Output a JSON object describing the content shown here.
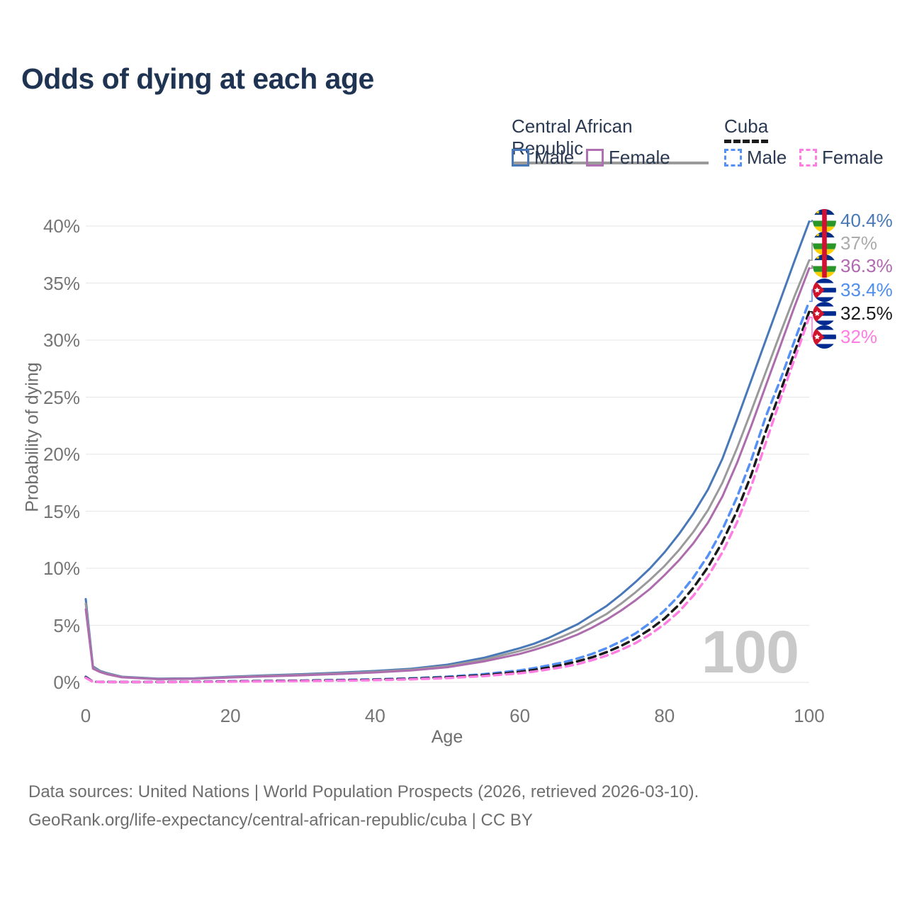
{
  "title": "Odds of dying at each age",
  "watermark_age": "100",
  "legend": {
    "groups": [
      {
        "label": "Central African Republic",
        "line_style": "solid",
        "underline_color": "#9a9a9a",
        "items": [
          {
            "label": "Male",
            "color": "#4878b8"
          },
          {
            "label": "Female",
            "color": "#b06fb0"
          }
        ]
      },
      {
        "label": "Cuba",
        "line_style": "dashed",
        "underline_color": "#1a1a1a",
        "items": [
          {
            "label": "Male",
            "color": "#5590f5"
          },
          {
            "label": "Female",
            "color": "#ff7de2"
          }
        ]
      }
    ]
  },
  "axes": {
    "x_label": "Age",
    "y_label": "Probability of dying",
    "x_ticks": [
      {
        "label": "0",
        "value": 0
      },
      {
        "label": "20",
        "value": 20
      },
      {
        "label": "40",
        "value": 40
      },
      {
        "label": "60",
        "value": 60
      },
      {
        "label": "80",
        "value": 80
      },
      {
        "label": "100",
        "value": 100
      }
    ],
    "y_ticks": [
      {
        "label": "0%",
        "value": 0
      },
      {
        "label": "5%",
        "value": 5
      },
      {
        "label": "10%",
        "value": 10
      },
      {
        "label": "15%",
        "value": 15
      },
      {
        "label": "20%",
        "value": 20
      },
      {
        "label": "25%",
        "value": 25
      },
      {
        "label": "30%",
        "value": 30
      },
      {
        "label": "35%",
        "value": 35
      },
      {
        "label": "40%",
        "value": 40
      }
    ]
  },
  "footer": {
    "line1": "Data sources: United Nations | World Population Prospects (2026, retrieved 2026-03-10).",
    "line2": "GeoRank.org/life-expectancy/central-african-republic/cuba | CC BY"
  },
  "chart_data": {
    "type": "line",
    "title": "Odds of dying at each age",
    "xlabel": "Age",
    "ylabel": "Probability of dying",
    "xlim": [
      0,
      100
    ],
    "ylim": [
      0,
      40.5
    ],
    "grid": "horizontal-only",
    "legend_position": "top-right",
    "hovered_x": 100,
    "x": [
      0,
      1,
      2,
      3,
      5,
      10,
      15,
      20,
      25,
      30,
      35,
      40,
      45,
      50,
      55,
      60,
      62,
      64,
      66,
      68,
      70,
      72,
      74,
      76,
      78,
      80,
      82,
      84,
      86,
      88,
      90,
      92,
      94,
      96,
      98,
      100
    ],
    "series": [
      {
        "id": "car-male",
        "name": "Central African Republic - Male",
        "country": "Central African Republic",
        "sex": "male",
        "flag": "car",
        "style": "solid",
        "color": "#4878b8",
        "end_label": "40.4%",
        "end_label_color": "#4878b8",
        "end_value": 40.4,
        "values": [
          7.3,
          1.4,
          1.0,
          0.8,
          0.5,
          0.32,
          0.36,
          0.5,
          0.62,
          0.72,
          0.85,
          1.0,
          1.2,
          1.55,
          2.15,
          3.0,
          3.4,
          3.9,
          4.5,
          5.1,
          5.9,
          6.7,
          7.7,
          8.8,
          10.0,
          11.4,
          13.0,
          14.8,
          16.9,
          19.6,
          23.0,
          26.5,
          30.0,
          33.5,
          37.0,
          40.4
        ]
      },
      {
        "id": "car-both",
        "name": "Central African Republic - Both sexes",
        "country": "Central African Republic",
        "sex": "both",
        "flag": "car",
        "style": "solid",
        "color": "#9a9a9a",
        "end_label": "37%",
        "end_label_color": "#ababab",
        "end_value": 37,
        "values": [
          6.9,
          1.3,
          0.95,
          0.75,
          0.47,
          0.3,
          0.33,
          0.46,
          0.57,
          0.67,
          0.79,
          0.93,
          1.12,
          1.43,
          1.98,
          2.75,
          3.1,
          3.55,
          4.05,
          4.6,
          5.3,
          6.0,
          6.9,
          7.9,
          9.0,
          10.2,
          11.6,
          13.2,
          15.1,
          17.5,
          20.5,
          23.8,
          27.2,
          30.6,
          33.9,
          37.0
        ]
      },
      {
        "id": "car-female",
        "name": "Central African Republic - Female",
        "country": "Central African Republic",
        "sex": "female",
        "flag": "car",
        "style": "solid",
        "color": "#ad6cad",
        "end_label": "36.3%",
        "end_label_color": "#b168b1",
        "end_value": 36.3,
        "values": [
          6.4,
          1.2,
          0.9,
          0.7,
          0.44,
          0.28,
          0.31,
          0.43,
          0.53,
          0.62,
          0.74,
          0.87,
          1.05,
          1.33,
          1.83,
          2.5,
          2.85,
          3.25,
          3.7,
          4.2,
          4.8,
          5.5,
          6.3,
          7.2,
          8.2,
          9.4,
          10.7,
          12.2,
          14.0,
          16.3,
          19.2,
          22.5,
          26.0,
          29.5,
          33.0,
          36.3
        ]
      },
      {
        "id": "cuba-male",
        "name": "Cuba - Male",
        "country": "Cuba",
        "sex": "male",
        "flag": "cuba",
        "style": "dashed",
        "color": "#5590f5",
        "end_label": "33.4%",
        "end_label_color": "#4d8ef0",
        "end_value": 33.4,
        "values": [
          0.5,
          0.06,
          0.05,
          0.04,
          0.04,
          0.04,
          0.06,
          0.1,
          0.13,
          0.16,
          0.21,
          0.27,
          0.36,
          0.5,
          0.72,
          1.05,
          1.25,
          1.5,
          1.75,
          2.1,
          2.5,
          3.0,
          3.6,
          4.3,
          5.2,
          6.3,
          7.6,
          9.2,
          11.1,
          13.4,
          16.2,
          19.5,
          23.3,
          26.5,
          30.0,
          33.4
        ]
      },
      {
        "id": "cuba-both",
        "name": "Cuba - Both sexes",
        "country": "Cuba",
        "sex": "both",
        "flag": "cuba",
        "style": "dashed",
        "color": "#1a1a1a",
        "end_label": "32.5%",
        "end_label_color": "#1a1a1a",
        "end_value": 32.5,
        "values": [
          0.45,
          0.05,
          0.04,
          0.04,
          0.03,
          0.03,
          0.05,
          0.08,
          0.11,
          0.14,
          0.18,
          0.23,
          0.31,
          0.44,
          0.63,
          0.92,
          1.1,
          1.3,
          1.55,
          1.85,
          2.2,
          2.65,
          3.2,
          3.85,
          4.65,
          5.6,
          6.8,
          8.3,
          10.1,
          12.3,
          15.0,
          18.2,
          22.0,
          25.5,
          29.0,
          32.5
        ]
      },
      {
        "id": "cuba-female",
        "name": "Cuba - Female",
        "country": "Cuba",
        "sex": "female",
        "flag": "cuba",
        "style": "dashed",
        "color": "#ff7de2",
        "end_label": "32%",
        "end_label_color": "#ff7de2",
        "end_value": 32,
        "values": [
          0.4,
          0.05,
          0.04,
          0.03,
          0.03,
          0.03,
          0.04,
          0.06,
          0.09,
          0.12,
          0.15,
          0.2,
          0.27,
          0.38,
          0.55,
          0.8,
          0.95,
          1.15,
          1.35,
          1.6,
          1.95,
          2.35,
          2.85,
          3.45,
          4.2,
          5.1,
          6.2,
          7.6,
          9.3,
          11.4,
          14.0,
          17.2,
          21.0,
          24.8,
          28.4,
          32.0
        ]
      }
    ]
  }
}
